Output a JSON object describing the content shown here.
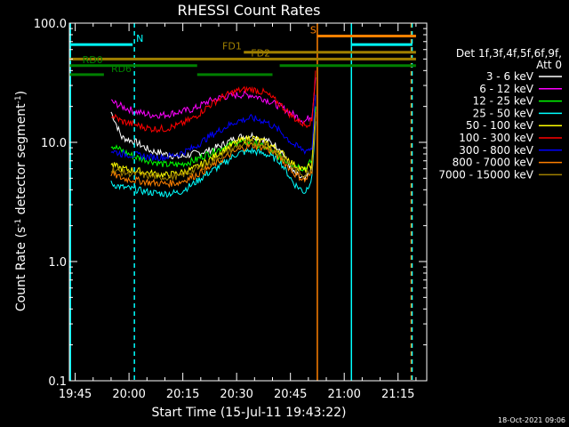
{
  "chart_data": {
    "type": "line",
    "title": "RHESSI Count Rates",
    "xlabel": "Start Time (15-Jul-11 19:43:22)",
    "ylabel": "Count Rate (s⁻¹ detector segment⁻¹)",
    "ylabel_main": "Count Rate (s",
    "ylabel_sup1": "-1",
    "ylabel_mid": " detector segment",
    "ylabel_sup2": "-1",
    "ylabel_end": ")",
    "y_scale": "log",
    "ylim": [
      0.1,
      100.0
    ],
    "xlim": [
      "19:43:22",
      "21:23:00"
    ],
    "x_ticks": [
      "19:45",
      "20:00",
      "20:15",
      "20:30",
      "20:45",
      "21:00",
      "21:15"
    ],
    "y_ticks": [
      "0.1",
      "1.0",
      "10.0",
      "100.0"
    ],
    "timestamp": "18-Oct-2021 09:06",
    "legend_header": [
      "Det 1f,3f,4f,5f,6f,9f,",
      "Att 0"
    ],
    "legend_placement": "right",
    "series": [
      {
        "name": "3 - 6 keV",
        "color": "#ffffff",
        "x": [
          "19:55",
          "19:58",
          "20:02",
          "20:06",
          "20:10",
          "20:14",
          "20:18",
          "20:22",
          "20:26",
          "20:30",
          "20:34",
          "20:38",
          "20:42",
          "20:46",
          "20:49",
          "20:51",
          "20:52"
        ],
        "values": [
          18,
          11,
          10,
          8.5,
          8.0,
          7.5,
          8.0,
          8.5,
          9.5,
          11,
          11.5,
          10.5,
          9,
          5.5,
          4.8,
          6,
          20
        ]
      },
      {
        "name": "6 - 12 keV",
        "color": "#ff00ff",
        "x": [
          "19:55",
          "19:58",
          "20:02",
          "20:06",
          "20:10",
          "20:14",
          "20:18",
          "20:22",
          "20:26",
          "20:30",
          "20:34",
          "20:38",
          "20:42",
          "20:46",
          "20:49",
          "20:51",
          "20:52"
        ],
        "values": [
          22,
          20,
          18,
          17,
          17,
          18,
          19,
          22,
          24,
          25,
          25,
          23,
          20,
          17,
          15,
          17,
          35
        ]
      },
      {
        "name": "12 - 25 keV",
        "color": "#00ff00",
        "x": [
          "19:55",
          "19:58",
          "20:02",
          "20:06",
          "20:10",
          "20:14",
          "20:18",
          "20:22",
          "20:26",
          "20:30",
          "20:34",
          "20:38",
          "20:42",
          "20:46",
          "20:49",
          "20:51",
          "20:52"
        ],
        "values": [
          9.5,
          8.5,
          7.5,
          7.0,
          6.5,
          6.5,
          7.0,
          8.0,
          9.0,
          10,
          10,
          9,
          7.5,
          6.5,
          6.0,
          7,
          20
        ]
      },
      {
        "name": "25 - 50 keV",
        "color": "#00ffff",
        "x": [
          "19:55",
          "19:58",
          "20:02",
          "20:06",
          "20:10",
          "20:14",
          "20:18",
          "20:22",
          "20:26",
          "20:30",
          "20:34",
          "20:38",
          "20:42",
          "20:46",
          "20:49",
          "20:51",
          "20:52"
        ],
        "values": [
          4.5,
          4.2,
          4.0,
          3.8,
          3.7,
          3.8,
          4.5,
          5.5,
          6.5,
          8.0,
          8.5,
          8.0,
          7.0,
          4.5,
          3.8,
          5,
          15
        ]
      },
      {
        "name": "50 - 100 keV",
        "color": "#ffff00",
        "x": [
          "19:55",
          "19:58",
          "20:02",
          "20:06",
          "20:10",
          "20:14",
          "20:18",
          "20:22",
          "20:26",
          "20:30",
          "20:34",
          "20:38",
          "20:42",
          "20:46",
          "20:49",
          "20:51",
          "20:52"
        ],
        "values": [
          6.5,
          6.0,
          5.8,
          5.5,
          5.3,
          5.5,
          6.0,
          7.0,
          8.5,
          10,
          11,
          10,
          8.5,
          6.5,
          5.8,
          6.5,
          18
        ]
      },
      {
        "name": "100 - 300 keV",
        "color": "#ff0000",
        "x": [
          "19:55",
          "19:58",
          "20:02",
          "20:06",
          "20:10",
          "20:14",
          "20:18",
          "20:22",
          "20:26",
          "20:30",
          "20:34",
          "20:38",
          "20:42",
          "20:46",
          "20:49",
          "20:51",
          "20:52"
        ],
        "values": [
          17,
          15,
          14,
          13,
          13,
          14,
          16,
          20,
          24,
          27,
          28,
          26,
          21,
          16,
          14,
          15,
          40
        ]
      },
      {
        "name": "300 - 800 keV",
        "color": "#0000ff",
        "x": [
          "19:55",
          "19:58",
          "20:02",
          "20:06",
          "20:10",
          "20:14",
          "20:18",
          "20:22",
          "20:26",
          "20:30",
          "20:34",
          "20:38",
          "20:42",
          "20:46",
          "20:49",
          "20:51",
          "20:52"
        ],
        "values": [
          8.5,
          8.0,
          7.8,
          7.5,
          7.5,
          8.0,
          9.0,
          11,
          13,
          15,
          16,
          15,
          12.5,
          9.5,
          8.5,
          9,
          25
        ]
      },
      {
        "name": "800 - 7000 keV",
        "color": "#ff8000",
        "x": [
          "19:55",
          "19:58",
          "20:02",
          "20:06",
          "20:10",
          "20:14",
          "20:18",
          "20:22",
          "20:26",
          "20:30",
          "20:34",
          "20:38",
          "20:42",
          "20:46",
          "20:49",
          "20:51",
          "20:52"
        ],
        "values": [
          5.5,
          5.0,
          4.8,
          4.6,
          4.5,
          4.6,
          5.2,
          6.0,
          7.2,
          8.5,
          9.5,
          9.0,
          7.5,
          5.5,
          4.8,
          5.5,
          17
        ]
      },
      {
        "name": "7000 - 15000 keV",
        "color": "#a08000",
        "x": [
          "19:55",
          "19:58",
          "20:02",
          "20:06",
          "20:10",
          "20:14",
          "20:18",
          "20:22",
          "20:26",
          "20:30",
          "20:34",
          "20:38",
          "20:42",
          "20:46",
          "20:49",
          "20:51",
          "20:52"
        ],
        "values": [
          6.0,
          5.6,
          5.4,
          5.2,
          5.1,
          5.2,
          5.8,
          6.6,
          7.8,
          9.2,
          10,
          9.5,
          8.0,
          6.0,
          5.3,
          6,
          18
        ]
      }
    ],
    "vlines": [
      {
        "time": "19:43:40",
        "color": "#00ffff",
        "style": "solid"
      },
      {
        "time": "20:01:30",
        "color": "#00ffff",
        "style": "dashed"
      },
      {
        "time": "20:52:30",
        "color": "#ff8000",
        "style": "solid"
      },
      {
        "time": "21:02:00",
        "color": "#00ffff",
        "style": "solid"
      },
      {
        "time": "21:18:40",
        "color": "#ff8000",
        "style": "dashed"
      },
      {
        "time": "21:18:55",
        "color": "#00ffff",
        "style": "dashed"
      }
    ],
    "bars": [
      {
        "label": "N",
        "color": "#00ffff",
        "start": "19:43:22",
        "end": "20:01:00",
        "y": 66,
        "label_time": "20:02:00"
      },
      {
        "label": "S",
        "color": "#ff8000",
        "start": "20:52:30",
        "end": "21:20:00",
        "y": 78,
        "label_time": "20:50:30"
      },
      {
        "label": "",
        "color": "#00ffff",
        "start": "21:02:00",
        "end": "21:19:00",
        "y": 66,
        "label_time": ""
      },
      {
        "label": "FD1",
        "color": "#a08000",
        "start": "20:32:00",
        "end": "21:20:00",
        "y": 57,
        "label_time": "20:26:00"
      },
      {
        "label": "FD2",
        "color": "#a08000",
        "start": "19:43:22",
        "end": "21:20:00",
        "y": 50,
        "label_time": "20:34:00"
      },
      {
        "label": "RD0",
        "color": "#008000",
        "start": "19:43:22",
        "end": "20:19:00",
        "y": 44,
        "label_time": "19:47:00"
      },
      {
        "label": "",
        "color": "#008000",
        "start": "20:42:00",
        "end": "21:20:00",
        "y": 44,
        "label_time": ""
      },
      {
        "label": "RD6",
        "color": "#008000",
        "start": "19:43:22",
        "end": "19:53:00",
        "y": 37,
        "label_time": "19:55:00"
      },
      {
        "label": "",
        "color": "#008000",
        "start": "20:19:00",
        "end": "20:40:00",
        "y": 37,
        "label_time": ""
      }
    ]
  }
}
